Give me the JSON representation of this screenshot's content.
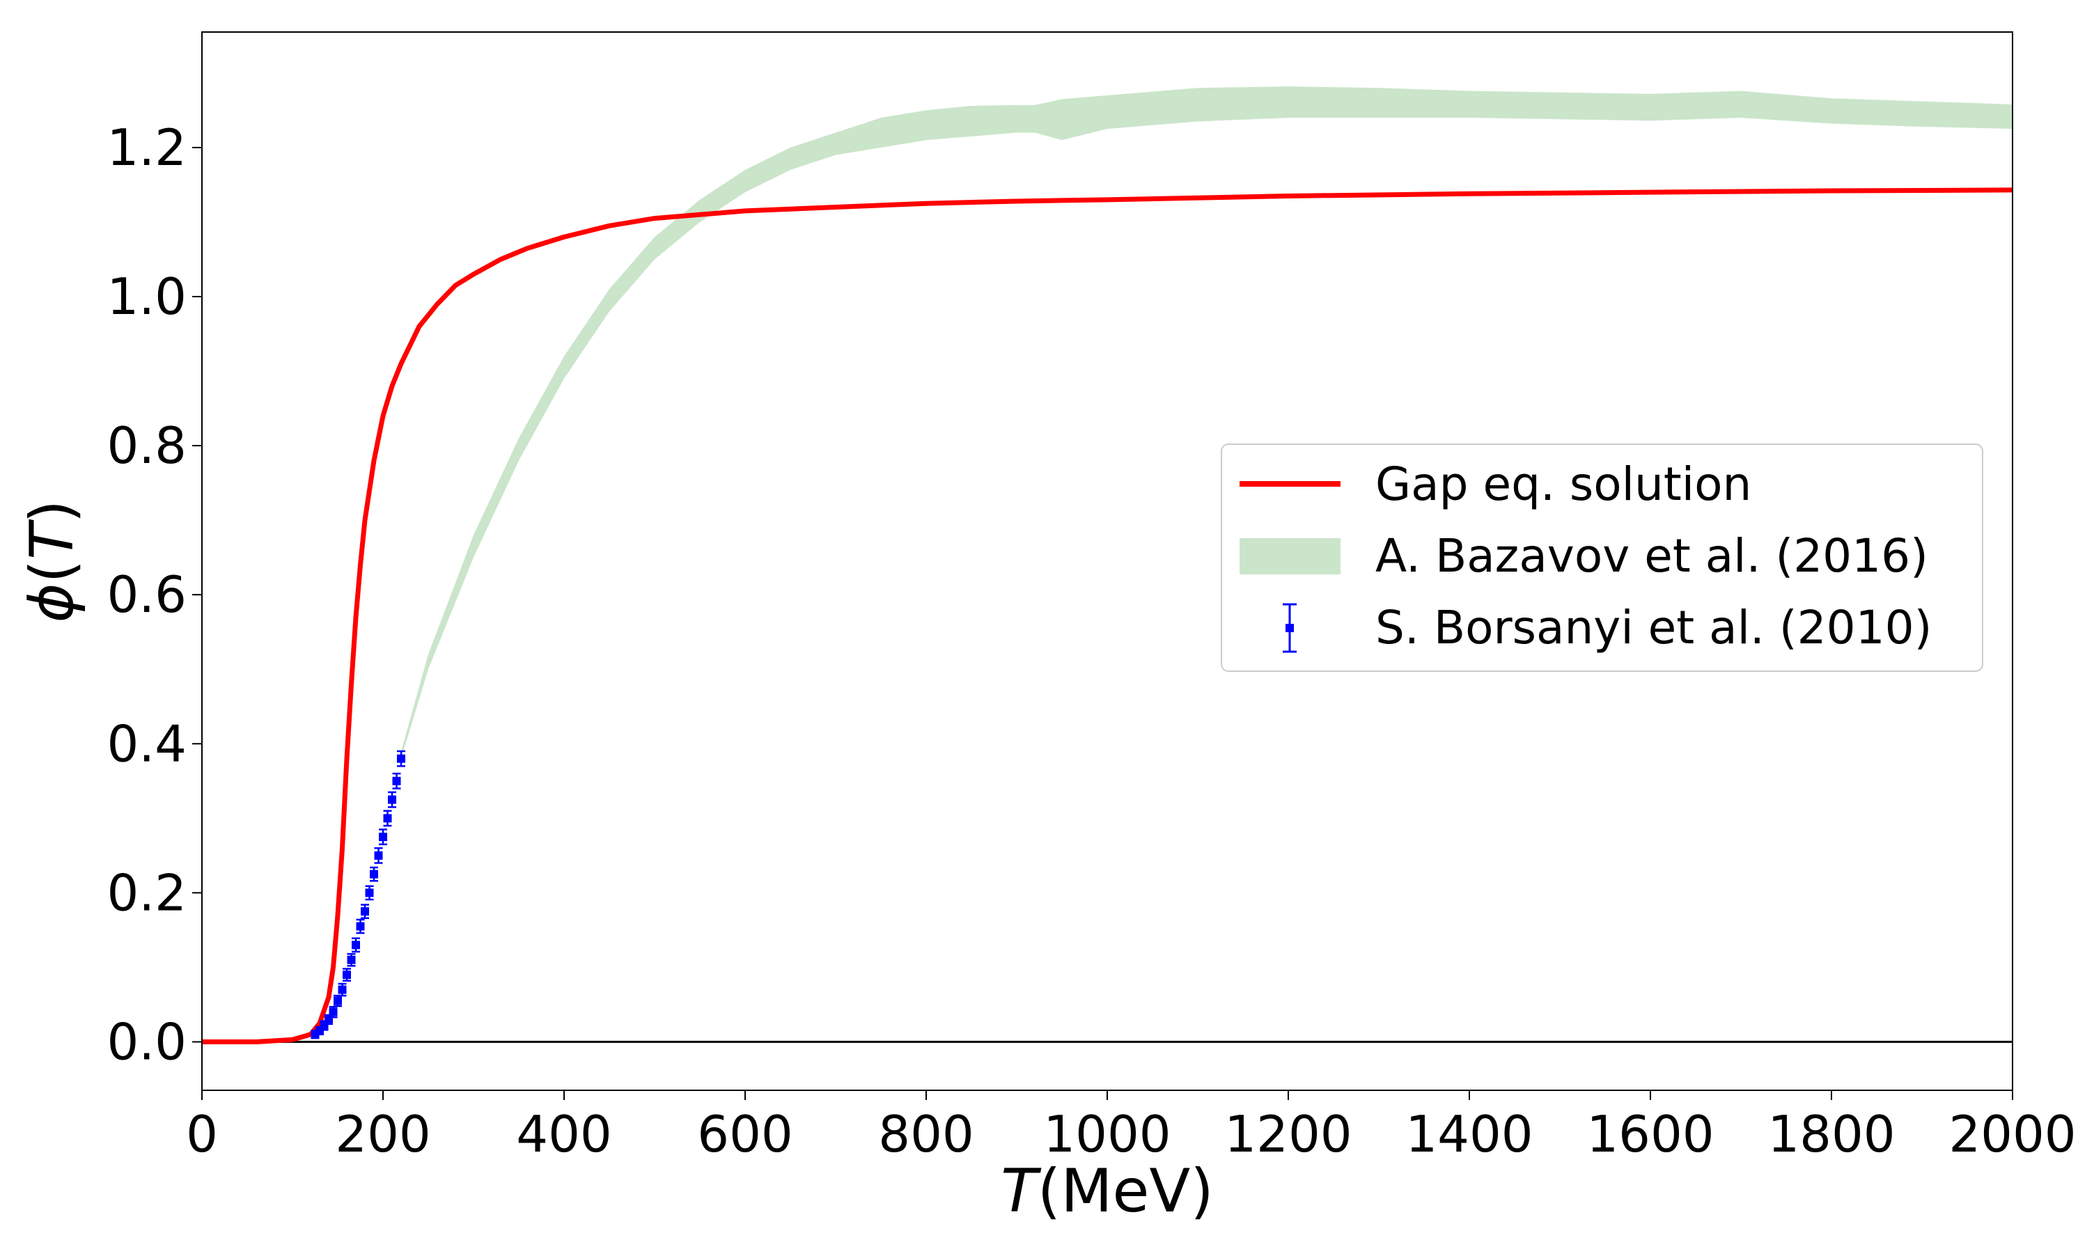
{
  "chart_data": {
    "type": "line",
    "xlabel": {
      "symbol": "T",
      "unit": "(MeV)"
    },
    "ylabel": {
      "symbol": "ϕ",
      "arg": "(T)"
    },
    "xlim": [
      0,
      2000
    ],
    "ylim": [
      -0.065,
      1.355
    ],
    "xticks": [
      0,
      200,
      400,
      600,
      800,
      1000,
      1200,
      1400,
      1600,
      1800,
      2000
    ],
    "yticks": [
      0.0,
      0.2,
      0.4,
      0.6,
      0.8,
      1.0,
      1.2
    ],
    "ytick_labels": [
      "0.0",
      "0.2",
      "0.4",
      "0.6",
      "0.8",
      "1.0",
      "1.2"
    ],
    "grid": false,
    "zero_line": true,
    "legend_position": "center-right",
    "series": [
      {
        "name": "Gap eq. solution",
        "kind": "line",
        "color": "#ff0000",
        "x": [
          0,
          60,
          100,
          120,
          130,
          140,
          145,
          150,
          155,
          160,
          165,
          170,
          175,
          180,
          190,
          200,
          210,
          220,
          240,
          260,
          280,
          300,
          330,
          360,
          400,
          450,
          500,
          600,
          700,
          800,
          900,
          1000,
          1200,
          1400,
          1600,
          1800,
          2000
        ],
        "y": [
          0.0,
          0.0,
          0.003,
          0.01,
          0.025,
          0.06,
          0.1,
          0.17,
          0.26,
          0.38,
          0.48,
          0.57,
          0.64,
          0.7,
          0.78,
          0.84,
          0.88,
          0.91,
          0.96,
          0.99,
          1.015,
          1.03,
          1.05,
          1.065,
          1.08,
          1.095,
          1.105,
          1.115,
          1.12,
          1.125,
          1.128,
          1.13,
          1.135,
          1.138,
          1.14,
          1.142,
          1.143
        ]
      },
      {
        "name": "A. Bazavov et al. (2016)",
        "kind": "band",
        "color": "#a6d4a6",
        "x": [
          220,
          250,
          300,
          350,
          400,
          450,
          500,
          550,
          600,
          650,
          700,
          750,
          800,
          850,
          900,
          920,
          950,
          1000,
          1100,
          1200,
          1300,
          1400,
          1500,
          1600,
          1700,
          1800,
          1900,
          2000
        ],
        "lower": [
          0.38,
          0.5,
          0.65,
          0.78,
          0.89,
          0.98,
          1.05,
          1.1,
          1.14,
          1.17,
          1.19,
          1.2,
          1.21,
          1.215,
          1.22,
          1.22,
          1.21,
          1.225,
          1.235,
          1.24,
          1.24,
          1.24,
          1.238,
          1.236,
          1.24,
          1.232,
          1.228,
          1.225
        ],
        "upper": [
          0.39,
          0.52,
          0.68,
          0.81,
          0.92,
          1.01,
          1.08,
          1.13,
          1.17,
          1.2,
          1.22,
          1.24,
          1.25,
          1.256,
          1.257,
          1.257,
          1.265,
          1.27,
          1.28,
          1.282,
          1.28,
          1.276,
          1.274,
          1.272,
          1.276,
          1.266,
          1.262,
          1.258
        ]
      },
      {
        "name": "S. Borsanyi et al. (2010)",
        "kind": "errorbar",
        "color": "#0000ff",
        "x": [
          125,
          130,
          135,
          140,
          145,
          150,
          155,
          160,
          165,
          170,
          175,
          180,
          185,
          190,
          195,
          200,
          205,
          210,
          215,
          220
        ],
        "y": [
          0.01,
          0.015,
          0.022,
          0.03,
          0.04,
          0.055,
          0.07,
          0.09,
          0.11,
          0.13,
          0.155,
          0.175,
          0.2,
          0.225,
          0.25,
          0.275,
          0.3,
          0.325,
          0.35,
          0.38
        ],
        "err": [
          0.005,
          0.005,
          0.006,
          0.006,
          0.007,
          0.007,
          0.008,
          0.008,
          0.008,
          0.009,
          0.009,
          0.009,
          0.009,
          0.009,
          0.01,
          0.01,
          0.01,
          0.01,
          0.01,
          0.01
        ]
      }
    ]
  }
}
